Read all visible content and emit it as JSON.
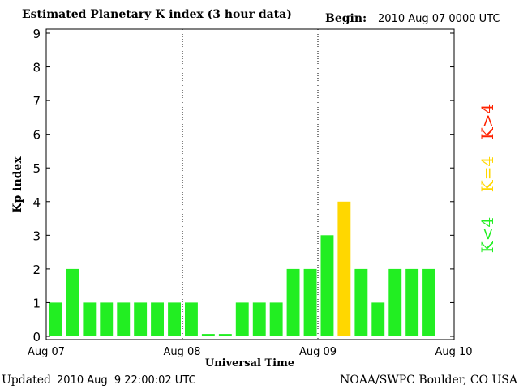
{
  "chart_data": {
    "type": "bar",
    "title": "Estimated Planetary K index (3 hour data)",
    "begin_label": "Begin:",
    "begin_value": "2010 Aug 07 0000 UTC",
    "xlabel": "Universal Time",
    "ylabel": "Kp index",
    "ylim": [
      0,
      9
    ],
    "yticks": [
      "0",
      "1",
      "2",
      "3",
      "4",
      "5",
      "6",
      "7",
      "8",
      "9"
    ],
    "xticks": [
      "Aug 07",
      "Aug 08",
      "Aug 09",
      "Aug 10"
    ],
    "day_separators": true,
    "values": [
      1,
      2,
      1,
      1,
      1,
      1,
      1,
      1,
      1,
      0.07,
      0.07,
      1,
      1,
      1,
      2,
      2,
      3,
      4,
      2,
      1,
      2,
      2,
      2
    ],
    "colors": {
      "low": "#22ee22",
      "equal": "#ffd700",
      "high": "#ff2200"
    },
    "legend": {
      "low": "K<4",
      "equal": "K=4",
      "high": "K>4"
    }
  },
  "footer": {
    "updated_label": "Updated",
    "updated_value": "2010 Aug  9 22:00:02 UTC",
    "credit": "NOAA/SWPC Boulder, CO USA"
  }
}
